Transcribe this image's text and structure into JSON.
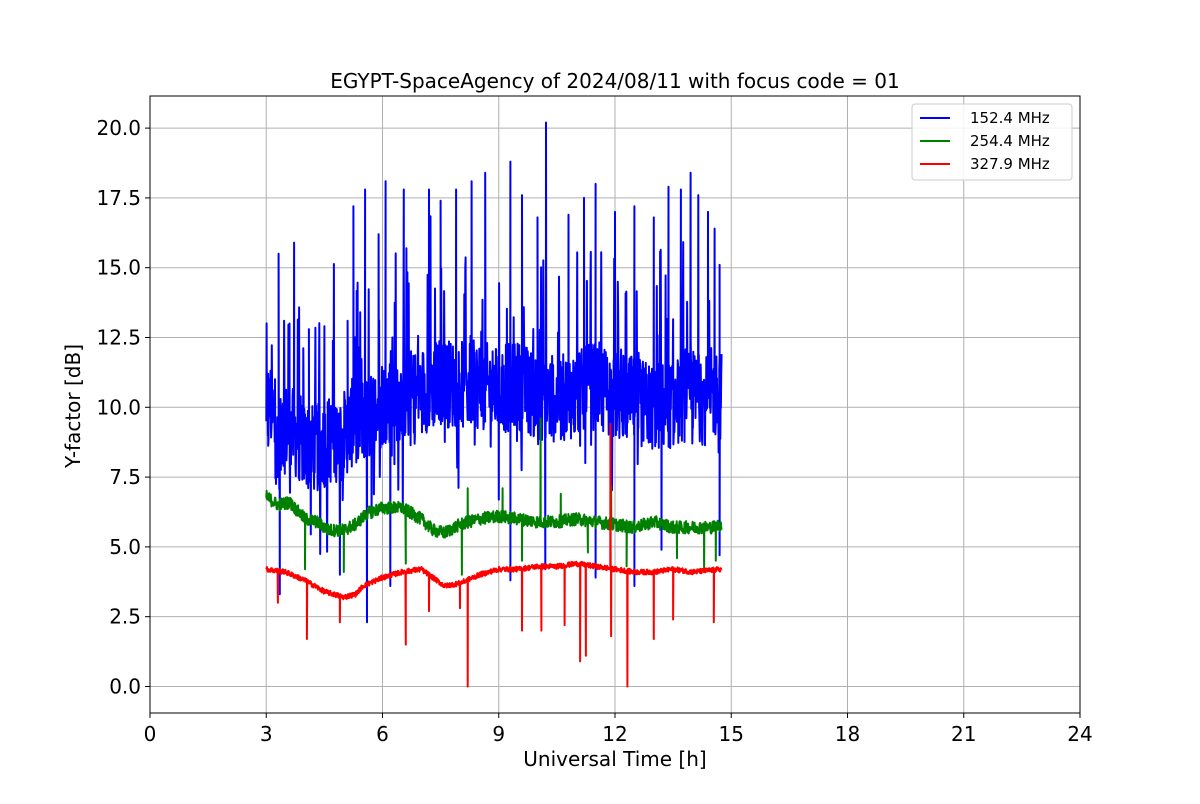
{
  "chart_data": {
    "type": "line",
    "title": "EGYPT-SpaceAgency of 2024/08/11 with focus code = 01",
    "xlabel": "Universal Time [h]",
    "ylabel": "Y-factor [dB]",
    "xlim": [
      0,
      24
    ],
    "ylim": [
      -0.95,
      21.15
    ],
    "xticks": [
      0,
      3,
      6,
      9,
      12,
      15,
      18,
      21,
      24
    ],
    "xtick_labels": [
      "0",
      "3",
      "6",
      "9",
      "12",
      "15",
      "18",
      "21",
      "24"
    ],
    "yticks": [
      0.0,
      2.5,
      5.0,
      7.5,
      10.0,
      12.5,
      15.0,
      17.5,
      20.0
    ],
    "ytick_labels": [
      "0.0",
      "2.5",
      "5.0",
      "7.5",
      "10.0",
      "12.5",
      "15.0",
      "17.5",
      "20.0"
    ],
    "grid": true,
    "legend_position": "top-right",
    "series": [
      {
        "name": "152.4 MHz",
        "color": "#0000ff",
        "noise_amplitude": 3.2,
        "points": [
          [
            3.0,
            9.0
          ],
          [
            3.1,
            10.2
          ],
          [
            3.3,
            8.4
          ],
          [
            3.5,
            9.3
          ],
          [
            3.8,
            9.0
          ],
          [
            4.0,
            8.6
          ],
          [
            4.3,
            8.5
          ],
          [
            4.6,
            8.8
          ],
          [
            5.0,
            9.0
          ],
          [
            5.3,
            9.6
          ],
          [
            5.6,
            9.5
          ],
          [
            6.0,
            10.2
          ],
          [
            6.5,
            10.4
          ],
          [
            7.0,
            10.6
          ],
          [
            7.5,
            10.9
          ],
          [
            8.0,
            10.8
          ],
          [
            8.5,
            10.8
          ],
          [
            9.0,
            10.6
          ],
          [
            9.5,
            10.8
          ],
          [
            10.0,
            10.4
          ],
          [
            10.5,
            10.3
          ],
          [
            11.0,
            10.4
          ],
          [
            11.5,
            10.8
          ],
          [
            12.0,
            10.4
          ],
          [
            12.5,
            10.2
          ],
          [
            13.0,
            10.0
          ],
          [
            13.5,
            10.1
          ],
          [
            14.0,
            10.5
          ],
          [
            14.3,
            10.2
          ],
          [
            14.5,
            10.5
          ],
          [
            14.75,
            10.4
          ]
        ],
        "peaks": [
          [
            3.05,
            11.2
          ],
          [
            3.32,
            15.5
          ],
          [
            3.6,
            13.0
          ],
          [
            3.72,
            15.9
          ],
          [
            4.1,
            12.8
          ],
          [
            4.5,
            12.9
          ],
          [
            5.1,
            13.1
          ],
          [
            5.25,
            17.2
          ],
          [
            5.55,
            17.8
          ],
          [
            5.9,
            16.2
          ],
          [
            6.08,
            18.1
          ],
          [
            6.55,
            17.8
          ],
          [
            7.2,
            17.8
          ],
          [
            7.5,
            17.4
          ],
          [
            7.9,
            17.8
          ],
          [
            8.3,
            18.1
          ],
          [
            8.65,
            18.4
          ],
          [
            9.3,
            18.8
          ],
          [
            9.6,
            17.6
          ],
          [
            10.0,
            16.8
          ],
          [
            10.22,
            20.2
          ],
          [
            10.8,
            16.9
          ],
          [
            11.2,
            17.5
          ],
          [
            11.5,
            18.0
          ],
          [
            12.0,
            17.0
          ],
          [
            12.5,
            17.2
          ],
          [
            13.0,
            16.8
          ],
          [
            13.38,
            17.9
          ],
          [
            13.7,
            17.8
          ],
          [
            13.95,
            18.4
          ],
          [
            14.15,
            17.6
          ],
          [
            14.4,
            17.0
          ],
          [
            14.57,
            16.4
          ],
          [
            14.7,
            15.1
          ]
        ],
        "dips": [
          [
            3.35,
            3.3
          ],
          [
            4.9,
            4.0
          ],
          [
            5.6,
            2.3
          ],
          [
            6.2,
            3.6
          ],
          [
            9.3,
            3.8
          ],
          [
            10.2,
            4.2
          ],
          [
            11.5,
            3.9
          ],
          [
            12.5,
            3.6
          ],
          [
            13.2,
            4.9
          ],
          [
            14.7,
            4.7
          ]
        ]
      },
      {
        "name": "254.4 MHz",
        "color": "#008000",
        "noise_amplitude": 0.45,
        "points": [
          [
            3.0,
            6.8
          ],
          [
            3.3,
            6.5
          ],
          [
            3.6,
            6.6
          ],
          [
            4.0,
            6.0
          ],
          [
            4.3,
            5.9
          ],
          [
            4.6,
            5.6
          ],
          [
            5.0,
            5.6
          ],
          [
            5.3,
            5.8
          ],
          [
            5.6,
            6.2
          ],
          [
            6.0,
            6.4
          ],
          [
            6.5,
            6.4
          ],
          [
            7.0,
            6.0
          ],
          [
            7.3,
            5.6
          ],
          [
            7.6,
            5.5
          ],
          [
            8.0,
            5.8
          ],
          [
            8.5,
            6.0
          ],
          [
            9.0,
            6.1
          ],
          [
            9.5,
            6.0
          ],
          [
            10.0,
            5.9
          ],
          [
            10.5,
            5.9
          ],
          [
            11.0,
            6.0
          ],
          [
            11.5,
            5.9
          ],
          [
            12.0,
            5.8
          ],
          [
            12.5,
            5.7
          ],
          [
            13.0,
            5.9
          ],
          [
            13.5,
            5.7
          ],
          [
            14.0,
            5.7
          ],
          [
            14.5,
            5.7
          ],
          [
            14.75,
            5.8
          ]
        ],
        "peaks": [
          [
            8.2,
            7.1
          ],
          [
            9.1,
            7.1
          ],
          [
            10.08,
            9.6
          ],
          [
            10.6,
            6.9
          ],
          [
            11.9,
            7.2
          ]
        ],
        "dips": [
          [
            4.0,
            4.2
          ],
          [
            5.0,
            4.1
          ],
          [
            6.6,
            4.4
          ],
          [
            8.05,
            4.0
          ],
          [
            9.6,
            4.5
          ],
          [
            11.3,
            4.8
          ],
          [
            12.3,
            4.3
          ],
          [
            13.6,
            4.6
          ],
          [
            14.3,
            4.1
          ],
          [
            14.6,
            4.5
          ]
        ]
      },
      {
        "name": "327.9 MHz",
        "color": "#ff0000",
        "noise_amplitude": 0.18,
        "points": [
          [
            3.0,
            4.2
          ],
          [
            3.5,
            4.1
          ],
          [
            4.0,
            3.8
          ],
          [
            4.5,
            3.4
          ],
          [
            5.0,
            3.2
          ],
          [
            5.3,
            3.3
          ],
          [
            5.5,
            3.6
          ],
          [
            6.0,
            3.9
          ],
          [
            6.5,
            4.1
          ],
          [
            7.0,
            4.2
          ],
          [
            7.3,
            3.9
          ],
          [
            7.6,
            3.6
          ],
          [
            8.0,
            3.7
          ],
          [
            8.5,
            4.0
          ],
          [
            9.0,
            4.2
          ],
          [
            9.5,
            4.2
          ],
          [
            10.0,
            4.3
          ],
          [
            10.5,
            4.3
          ],
          [
            11.0,
            4.4
          ],
          [
            11.5,
            4.3
          ],
          [
            12.0,
            4.2
          ],
          [
            12.5,
            4.1
          ],
          [
            13.0,
            4.1
          ],
          [
            13.5,
            4.2
          ],
          [
            14.0,
            4.1
          ],
          [
            14.75,
            4.2
          ]
        ],
        "peaks": [
          [
            11.88,
            9.4
          ]
        ],
        "dips": [
          [
            3.3,
            3.0
          ],
          [
            4.05,
            1.7
          ],
          [
            4.9,
            2.3
          ],
          [
            6.6,
            1.5
          ],
          [
            7.2,
            2.7
          ],
          [
            8.0,
            2.8
          ],
          [
            8.2,
            0.0
          ],
          [
            9.6,
            2.0
          ],
          [
            10.1,
            2.0
          ],
          [
            10.7,
            2.2
          ],
          [
            11.1,
            0.9
          ],
          [
            11.25,
            1.1
          ],
          [
            11.9,
            1.8
          ],
          [
            12.32,
            0.0
          ],
          [
            13.0,
            1.7
          ],
          [
            13.5,
            2.4
          ],
          [
            14.55,
            2.3
          ]
        ]
      }
    ]
  }
}
